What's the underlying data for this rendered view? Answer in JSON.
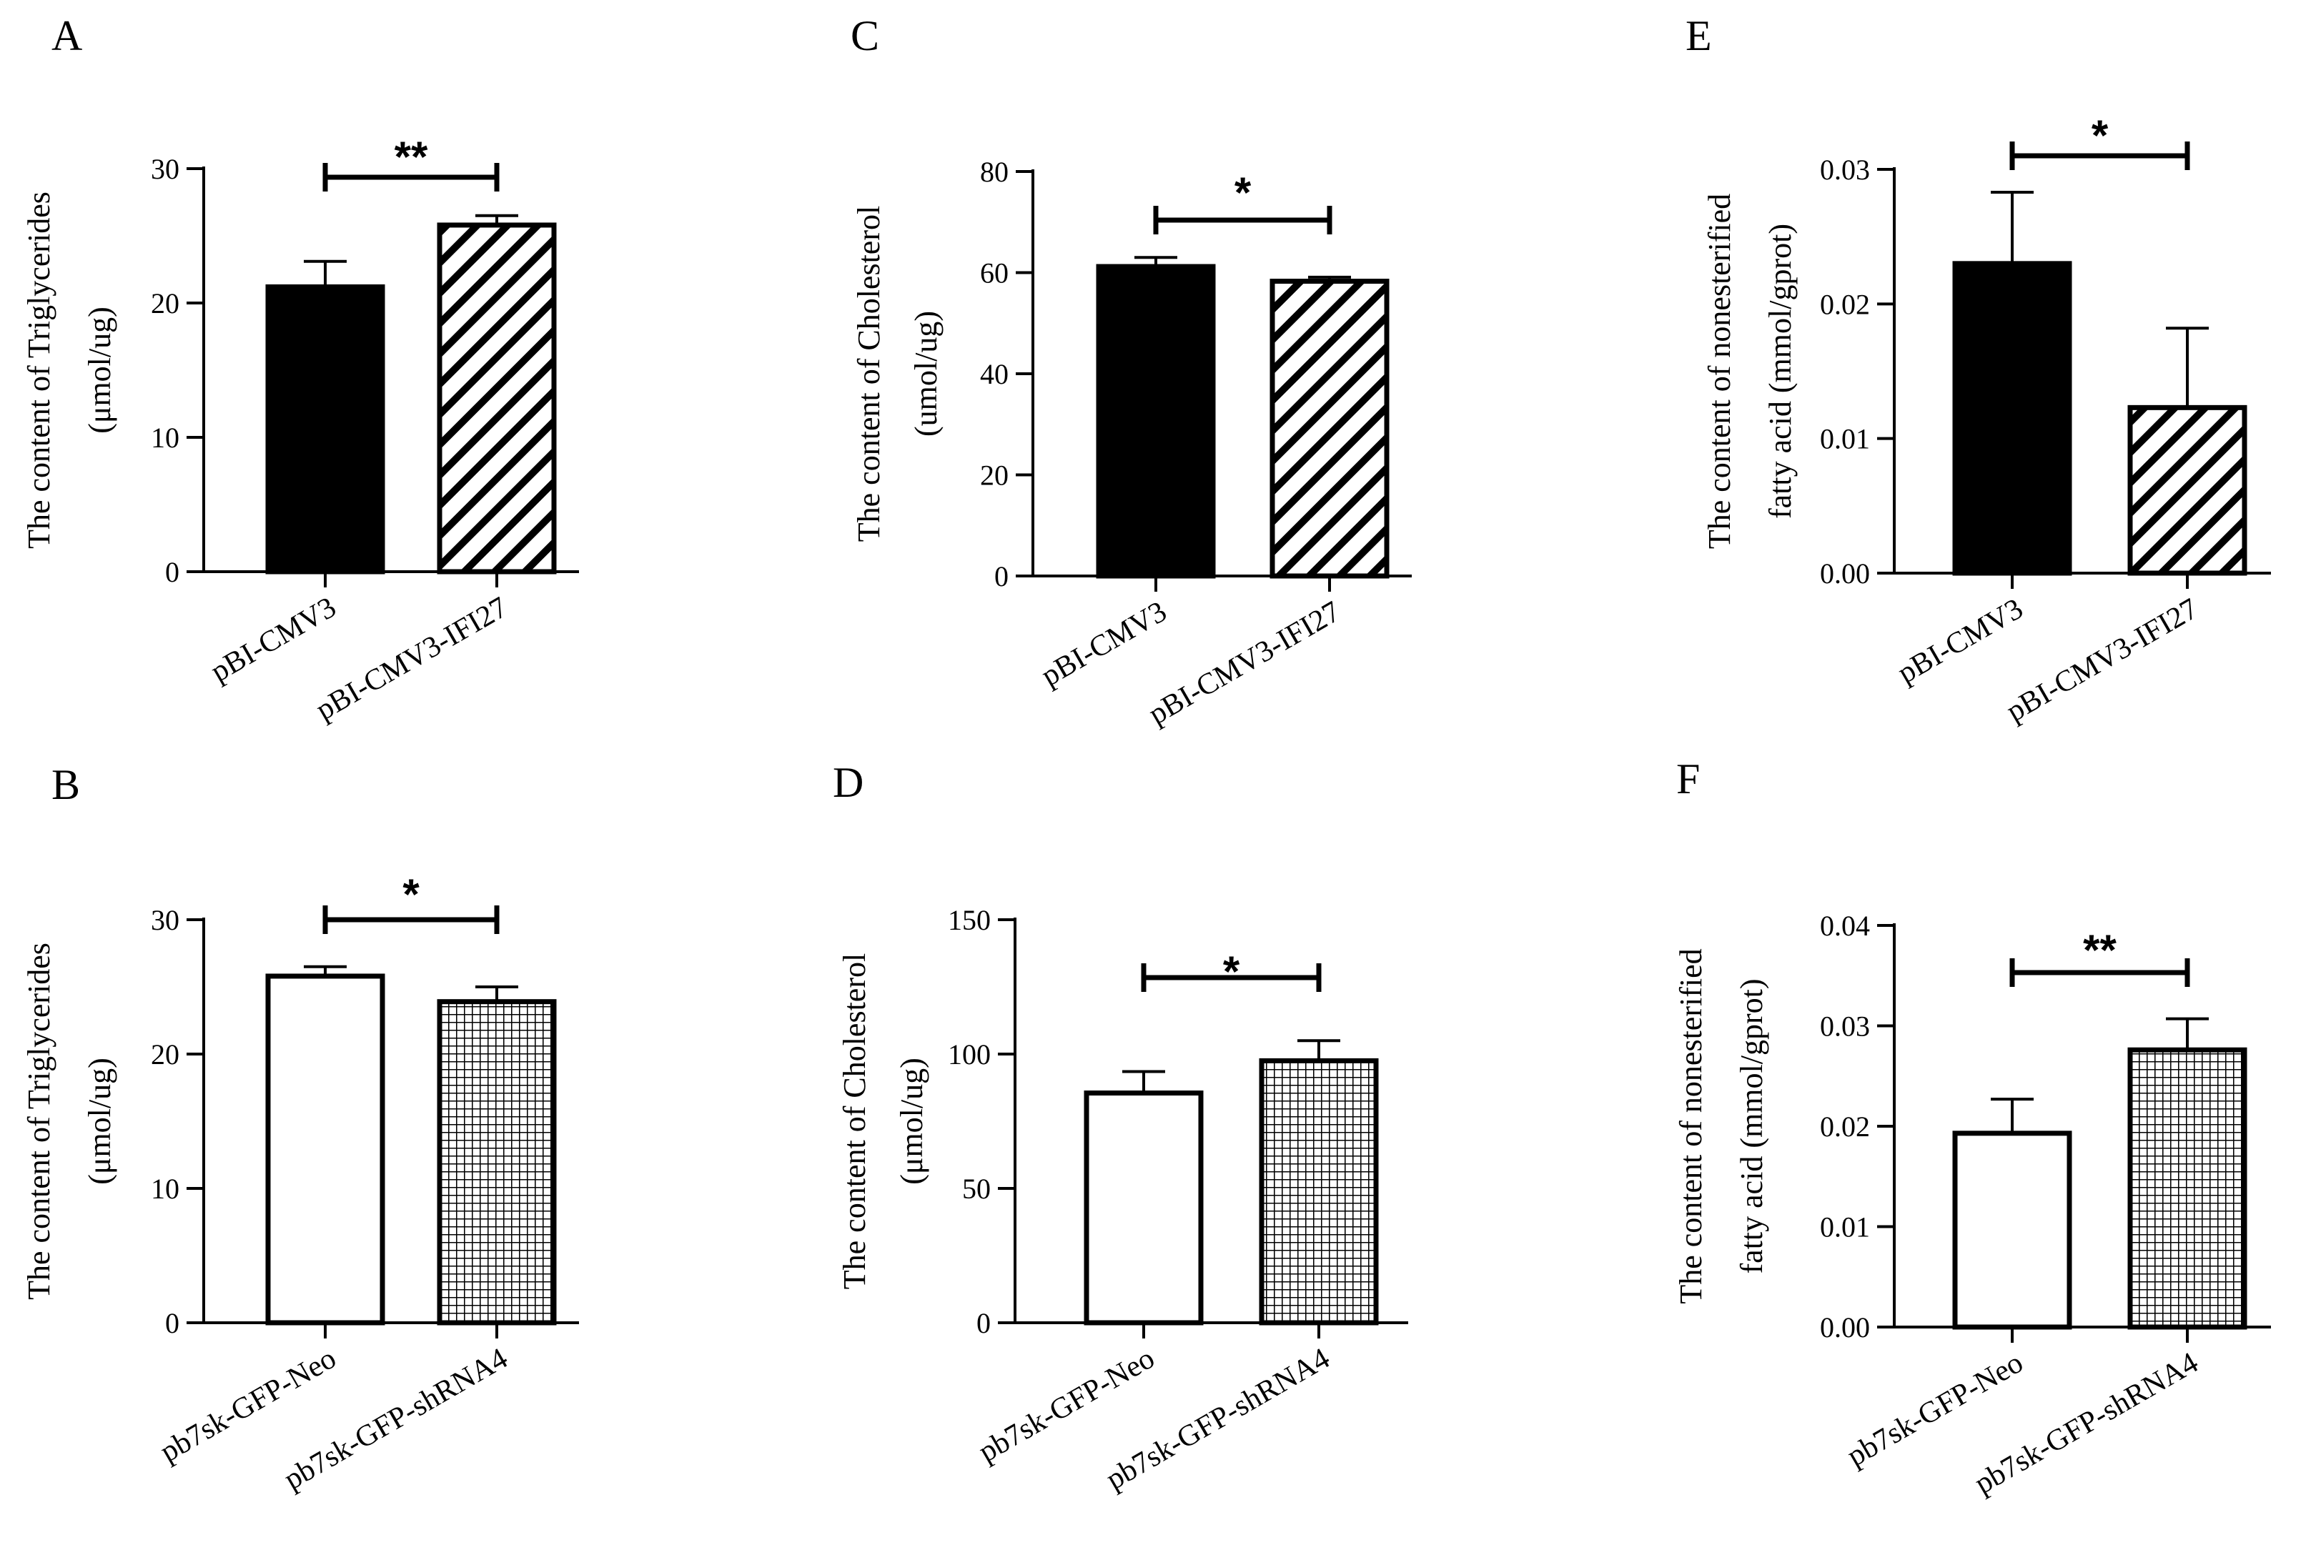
{
  "chart_data": [
    {
      "id": "A",
      "panel_label": "A",
      "type": "bar",
      "ylabel": [
        "The content of Triglycerides",
        "(μmol/ug)"
      ],
      "categories": [
        "pBI-CMV3",
        "pBI-CMV3-IFI27"
      ],
      "values": [
        21.2,
        25.8
      ],
      "errors": [
        1.9,
        0.7
      ],
      "fills": [
        "solid",
        "hatch"
      ],
      "ylim": [
        0,
        30
      ],
      "yticks": [
        "0",
        "10",
        "20",
        "30"
      ],
      "significance": "**"
    },
    {
      "id": "B",
      "panel_label": "B",
      "type": "bar",
      "ylabel": [
        "The content of Triglycerides",
        "(μmol/ug)"
      ],
      "categories": [
        "pb7sk-GFP-Neo",
        "pb7sk-GFP-shRNA4"
      ],
      "values": [
        25.8,
        23.9
      ],
      "errors": [
        0.7,
        1.1
      ],
      "fills": [
        "open",
        "grid"
      ],
      "ylim": [
        0,
        30
      ],
      "yticks": [
        "0",
        "10",
        "20",
        "30"
      ],
      "significance": "*"
    },
    {
      "id": "C",
      "panel_label": "C",
      "type": "bar",
      "ylabel": [
        "The content of Cholesterol",
        "(umol/ug)"
      ],
      "categories": [
        "pBI-CMV3",
        "pBI-CMV3-IFI27"
      ],
      "values": [
        61.2,
        58.3
      ],
      "errors": [
        1.8,
        0.8
      ],
      "fills": [
        "solid",
        "hatch"
      ],
      "ylim": [
        0,
        80
      ],
      "yticks": [
        "0",
        "20",
        "40",
        "60",
        "80"
      ],
      "significance": "*"
    },
    {
      "id": "D",
      "panel_label": "D",
      "type": "bar",
      "ylabel": [
        "The content of Cholesterol",
        "(μmol/ug)"
      ],
      "categories": [
        "pb7sk-GFP-Neo",
        "pb7sk-GFP-shRNA4"
      ],
      "values": [
        85.5,
        97.5
      ],
      "errors": [
        8,
        7.5
      ],
      "fills": [
        "open",
        "grid"
      ],
      "ylim": [
        0,
        150
      ],
      "yticks": [
        "0",
        "50",
        "100",
        "150"
      ],
      "significance": "*"
    },
    {
      "id": "E",
      "panel_label": "E",
      "type": "bar",
      "ylabel": [
        "The content of nonesterified",
        "fatty acid (mmol/gprot)"
      ],
      "categories": [
        "pBI-CMV3",
        "pBI-CMV3-IFI27"
      ],
      "values": [
        0.023,
        0.0123
      ],
      "errors": [
        0.0053,
        0.0059
      ],
      "fills": [
        "solid",
        "hatch"
      ],
      "ylim": [
        0,
        0.03
      ],
      "yticks": [
        "0.00",
        "0.01",
        "0.02",
        "0.03"
      ],
      "significance": "*"
    },
    {
      "id": "F",
      "panel_label": "F",
      "type": "bar",
      "ylabel": [
        "The content of nonesterified",
        "fatty acid (mmol/gprot)"
      ],
      "categories": [
        "pb7sk-GFP-Neo",
        "pb7sk-GFP-shRNA4"
      ],
      "values": [
        0.0193,
        0.0276
      ],
      "errors": [
        0.0034,
        0.0031
      ],
      "fills": [
        "open",
        "grid"
      ],
      "ylim": [
        0,
        0.04
      ],
      "yticks": [
        "0.00",
        "0.01",
        "0.02",
        "0.03",
        "0.04"
      ],
      "significance": "**"
    }
  ]
}
